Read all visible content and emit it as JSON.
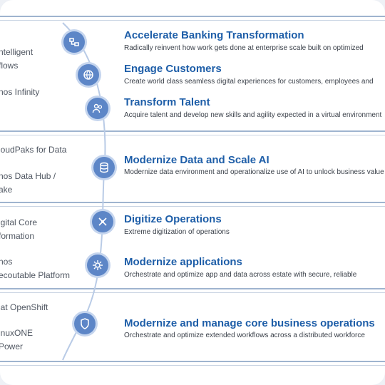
{
  "rows": [
    {
      "title": "Accelerate Banking Transformation",
      "desc": "Radically reinvent how work gets done at enterprise scale built on optimized"
    },
    {
      "title": "Engage Customers",
      "desc": "Create world class seamless digital experiences for customers, employees and"
    },
    {
      "title": "Transform Talent",
      "desc": "Acquire talent and develop new skills and agility expected in a virtual environment"
    },
    {
      "title": "Modernize Data and Scale AI",
      "desc": "Modernize data environment and operationalize use of AI to unlock business value"
    },
    {
      "title": "Digitize Operations",
      "desc": "Extreme digitization of operations"
    },
    {
      "title": "Modernize applications",
      "desc": "Orchestrate and optimize app and data across estate with secure, reliable"
    },
    {
      "title": "Modernize and manage core business operations",
      "desc": "Orchestrate and optimize extended workflows across a distributed workforce"
    }
  ],
  "left_labels": [
    "ntelligent\nflows",
    "nos Infinity",
    "loudPaks for Data",
    "nos Data Hub /\nake",
    "igital Core\nformation",
    "nos\necoutable Platform",
    "lat OpenShift",
    "inuxONE\nPower"
  ],
  "icons": [
    "workflow-icon",
    "globe-icon",
    "people-icon",
    "data-icon",
    "operations-icon",
    "gear-icon",
    "shield-icon"
  ],
  "colors": {
    "title": "#1e5ea8",
    "node": "#5d86c7",
    "rule": "#9fb4cf",
    "arc": "#b9cbe6"
  }
}
